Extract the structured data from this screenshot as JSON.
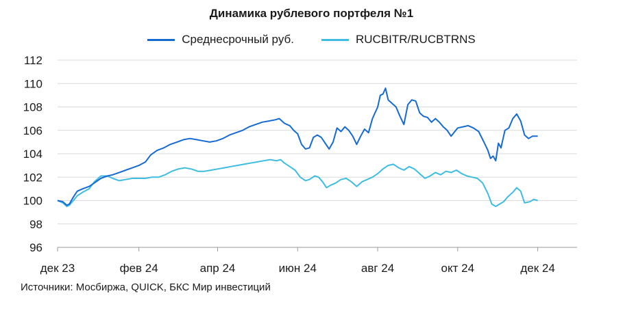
{
  "chart_data": {
    "type": "line",
    "title": "Динамика рублевого портфеля №1",
    "xlabel": "",
    "ylabel": "",
    "ylim": [
      96,
      112
    ],
    "yticks": [
      96,
      98,
      100,
      102,
      104,
      106,
      108,
      110,
      112
    ],
    "xlim": [
      "2023-12-01",
      "2024-12-31"
    ],
    "xticks": [
      {
        "label": "дек 23",
        "date": "2023-12-01"
      },
      {
        "label": "фев 24",
        "date": "2024-02-01"
      },
      {
        "label": "апр 24",
        "date": "2024-04-01"
      },
      {
        "label": "июн 24",
        "date": "2024-06-01"
      },
      {
        "label": "авг 24",
        "date": "2024-08-01"
      },
      {
        "label": "окт 24",
        "date": "2024-10-01"
      },
      {
        "label": "дек 24",
        "date": "2024-12-01"
      }
    ],
    "grid": true,
    "legend_position": "top",
    "series": [
      {
        "name": "Среднесрочный руб.",
        "color": "#1569d3",
        "points": [
          [
            "2023-12-01",
            100.0
          ],
          [
            "2023-12-05",
            99.9
          ],
          [
            "2023-12-08",
            99.6
          ],
          [
            "2023-12-10",
            99.7
          ],
          [
            "2023-12-13",
            100.3
          ],
          [
            "2023-12-16",
            100.8
          ],
          [
            "2023-12-20",
            101.0
          ],
          [
            "2023-12-25",
            101.2
          ],
          [
            "2023-12-29",
            101.5
          ],
          [
            "2024-01-03",
            101.9
          ],
          [
            "2024-01-08",
            102.1
          ],
          [
            "2024-01-12",
            102.2
          ],
          [
            "2024-01-17",
            102.4
          ],
          [
            "2024-01-22",
            102.6
          ],
          [
            "2024-01-27",
            102.8
          ],
          [
            "2024-02-01",
            103.0
          ],
          [
            "2024-02-06",
            103.3
          ],
          [
            "2024-02-10",
            103.9
          ],
          [
            "2024-02-15",
            104.3
          ],
          [
            "2024-02-20",
            104.5
          ],
          [
            "2024-02-25",
            104.8
          ],
          [
            "2024-03-01",
            105.0
          ],
          [
            "2024-03-06",
            105.2
          ],
          [
            "2024-03-11",
            105.3
          ],
          [
            "2024-03-16",
            105.2
          ],
          [
            "2024-03-21",
            105.1
          ],
          [
            "2024-03-26",
            105.0
          ],
          [
            "2024-03-31",
            105.1
          ],
          [
            "2024-04-05",
            105.3
          ],
          [
            "2024-04-10",
            105.6
          ],
          [
            "2024-04-15",
            105.8
          ],
          [
            "2024-04-20",
            106.0
          ],
          [
            "2024-04-25",
            106.3
          ],
          [
            "2024-04-30",
            106.5
          ],
          [
            "2024-05-05",
            106.7
          ],
          [
            "2024-05-10",
            106.8
          ],
          [
            "2024-05-15",
            106.9
          ],
          [
            "2024-05-18",
            107.0
          ],
          [
            "2024-05-22",
            106.6
          ],
          [
            "2024-05-26",
            106.4
          ],
          [
            "2024-05-29",
            106.0
          ],
          [
            "2024-06-01",
            105.7
          ],
          [
            "2024-06-04",
            104.8
          ],
          [
            "2024-06-07",
            104.4
          ],
          [
            "2024-06-10",
            104.5
          ],
          [
            "2024-06-13",
            105.4
          ],
          [
            "2024-06-16",
            105.6
          ],
          [
            "2024-06-19",
            105.4
          ],
          [
            "2024-06-22",
            104.9
          ],
          [
            "2024-06-25",
            104.4
          ],
          [
            "2024-06-28",
            105.0
          ],
          [
            "2024-07-01",
            106.2
          ],
          [
            "2024-07-04",
            105.9
          ],
          [
            "2024-07-07",
            106.3
          ],
          [
            "2024-07-10",
            106.0
          ],
          [
            "2024-07-13",
            105.5
          ],
          [
            "2024-07-16",
            104.8
          ],
          [
            "2024-07-19",
            105.5
          ],
          [
            "2024-07-22",
            106.1
          ],
          [
            "2024-07-25",
            105.8
          ],
          [
            "2024-07-28",
            107.0
          ],
          [
            "2024-08-01",
            108.0
          ],
          [
            "2024-08-03",
            109.0
          ],
          [
            "2024-08-05",
            109.1
          ],
          [
            "2024-08-07",
            109.6
          ],
          [
            "2024-08-09",
            108.6
          ],
          [
            "2024-08-12",
            108.3
          ],
          [
            "2024-08-15",
            108.0
          ],
          [
            "2024-08-18",
            107.2
          ],
          [
            "2024-08-21",
            106.5
          ],
          [
            "2024-08-24",
            108.2
          ],
          [
            "2024-08-27",
            108.6
          ],
          [
            "2024-08-30",
            108.5
          ],
          [
            "2024-09-02",
            107.5
          ],
          [
            "2024-09-05",
            107.2
          ],
          [
            "2024-09-08",
            107.1
          ],
          [
            "2024-09-11",
            106.7
          ],
          [
            "2024-09-14",
            107.0
          ],
          [
            "2024-09-17",
            106.7
          ],
          [
            "2024-09-20",
            106.3
          ],
          [
            "2024-09-23",
            106.0
          ],
          [
            "2024-09-26",
            105.5
          ],
          [
            "2024-10-01",
            106.2
          ],
          [
            "2024-10-05",
            106.3
          ],
          [
            "2024-10-09",
            106.4
          ],
          [
            "2024-10-13",
            106.2
          ],
          [
            "2024-10-17",
            105.9
          ],
          [
            "2024-10-21",
            105.0
          ],
          [
            "2024-10-24",
            104.3
          ],
          [
            "2024-10-26",
            103.6
          ],
          [
            "2024-10-28",
            103.8
          ],
          [
            "2024-10-30",
            103.4
          ],
          [
            "2024-11-01",
            104.9
          ],
          [
            "2024-11-03",
            104.5
          ],
          [
            "2024-11-06",
            106.0
          ],
          [
            "2024-11-09",
            106.2
          ],
          [
            "2024-11-12",
            107.0
          ],
          [
            "2024-11-15",
            107.4
          ],
          [
            "2024-11-18",
            106.8
          ],
          [
            "2024-11-21",
            105.6
          ],
          [
            "2024-11-24",
            105.3
          ],
          [
            "2024-11-27",
            105.5
          ],
          [
            "2024-12-01",
            105.5
          ]
        ]
      },
      {
        "name": "RUCBITR/RUCBTRNS",
        "color": "#3cbde0",
        "points": [
          [
            "2023-12-01",
            100.0
          ],
          [
            "2023-12-05",
            99.8
          ],
          [
            "2023-12-08",
            99.5
          ],
          [
            "2023-12-10",
            99.6
          ],
          [
            "2023-12-13",
            100.0
          ],
          [
            "2023-12-16",
            100.4
          ],
          [
            "2023-12-20",
            100.7
          ],
          [
            "2023-12-25",
            101.0
          ],
          [
            "2023-12-29",
            101.6
          ],
          [
            "2024-01-03",
            102.1
          ],
          [
            "2024-01-08",
            102.1
          ],
          [
            "2024-01-12",
            101.9
          ],
          [
            "2024-01-17",
            101.7
          ],
          [
            "2024-01-22",
            101.8
          ],
          [
            "2024-01-27",
            101.9
          ],
          [
            "2024-02-01",
            101.9
          ],
          [
            "2024-02-06",
            101.9
          ],
          [
            "2024-02-11",
            102.0
          ],
          [
            "2024-02-16",
            102.0
          ],
          [
            "2024-02-21",
            102.2
          ],
          [
            "2024-02-26",
            102.5
          ],
          [
            "2024-03-02",
            102.7
          ],
          [
            "2024-03-07",
            102.8
          ],
          [
            "2024-03-12",
            102.7
          ],
          [
            "2024-03-17",
            102.5
          ],
          [
            "2024-03-22",
            102.5
          ],
          [
            "2024-03-27",
            102.6
          ],
          [
            "2024-04-01",
            102.7
          ],
          [
            "2024-04-06",
            102.8
          ],
          [
            "2024-04-11",
            102.9
          ],
          [
            "2024-04-16",
            103.0
          ],
          [
            "2024-04-21",
            103.1
          ],
          [
            "2024-04-26",
            103.2
          ],
          [
            "2024-05-01",
            103.3
          ],
          [
            "2024-05-06",
            103.4
          ],
          [
            "2024-05-11",
            103.5
          ],
          [
            "2024-05-16",
            103.4
          ],
          [
            "2024-05-19",
            103.5
          ],
          [
            "2024-05-22",
            103.2
          ],
          [
            "2024-05-26",
            102.9
          ],
          [
            "2024-05-30",
            102.6
          ],
          [
            "2024-06-03",
            102.0
          ],
          [
            "2024-06-07",
            101.7
          ],
          [
            "2024-06-10",
            101.8
          ],
          [
            "2024-06-14",
            102.1
          ],
          [
            "2024-06-17",
            102.0
          ],
          [
            "2024-06-20",
            101.6
          ],
          [
            "2024-06-23",
            101.1
          ],
          [
            "2024-06-26",
            101.3
          ],
          [
            "2024-06-30",
            101.5
          ],
          [
            "2024-07-04",
            101.8
          ],
          [
            "2024-07-08",
            101.9
          ],
          [
            "2024-07-12",
            101.6
          ],
          [
            "2024-07-16",
            101.2
          ],
          [
            "2024-07-20",
            101.6
          ],
          [
            "2024-07-24",
            101.8
          ],
          [
            "2024-07-28",
            102.0
          ],
          [
            "2024-08-01",
            102.3
          ],
          [
            "2024-08-05",
            102.7
          ],
          [
            "2024-08-09",
            103.0
          ],
          [
            "2024-08-13",
            103.1
          ],
          [
            "2024-08-17",
            102.8
          ],
          [
            "2024-08-21",
            102.6
          ],
          [
            "2024-08-25",
            102.9
          ],
          [
            "2024-08-29",
            102.7
          ],
          [
            "2024-09-02",
            102.3
          ],
          [
            "2024-09-06",
            101.9
          ],
          [
            "2024-09-10",
            102.1
          ],
          [
            "2024-09-14",
            102.4
          ],
          [
            "2024-09-18",
            102.2
          ],
          [
            "2024-09-22",
            102.5
          ],
          [
            "2024-09-26",
            102.4
          ],
          [
            "2024-09-30",
            102.6
          ],
          [
            "2024-10-04",
            102.3
          ],
          [
            "2024-10-08",
            102.1
          ],
          [
            "2024-10-12",
            102.0
          ],
          [
            "2024-10-16",
            101.9
          ],
          [
            "2024-10-20",
            101.5
          ],
          [
            "2024-10-24",
            100.6
          ],
          [
            "2024-10-27",
            99.7
          ],
          [
            "2024-10-30",
            99.5
          ],
          [
            "2024-11-02",
            99.7
          ],
          [
            "2024-11-05",
            99.9
          ],
          [
            "2024-11-08",
            100.3
          ],
          [
            "2024-11-12",
            100.7
          ],
          [
            "2024-11-15",
            101.1
          ],
          [
            "2024-11-18",
            100.8
          ],
          [
            "2024-11-21",
            99.8
          ],
          [
            "2024-11-25",
            99.9
          ],
          [
            "2024-11-28",
            100.1
          ],
          [
            "2024-12-01",
            100.0
          ]
        ]
      }
    ]
  },
  "source_note": "Источники: Мосбиржа, QUICK, БКС Мир инвестиций"
}
